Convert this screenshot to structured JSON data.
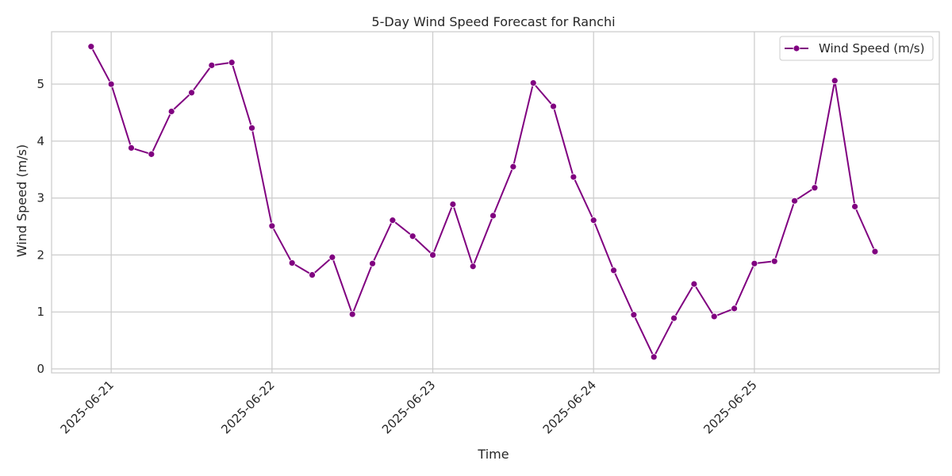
{
  "chart_data": {
    "type": "line",
    "title": "5-Day Wind Speed Forecast for Ranchi",
    "xlabel": "Time",
    "ylabel": "Wind Speed (m/s)",
    "x_ticks": [
      "2025-06-21",
      "2025-06-22",
      "2025-06-23",
      "2025-06-24",
      "2025-06-25"
    ],
    "y_ticks": [
      "0",
      "1",
      "2",
      "3",
      "4",
      "5"
    ],
    "ylim": [
      -0.07,
      5.92
    ],
    "xlim": [
      "2025-06-20T15:06:00",
      "2025-06-26T03:36:00"
    ],
    "grid": true,
    "legend_position": "top-right",
    "series": [
      {
        "name": "Wind Speed (m/s)",
        "color": "#800080",
        "marker": "circle",
        "x": [
          "2025-06-20T21:00",
          "2025-06-21T00:00",
          "2025-06-21T03:00",
          "2025-06-21T06:00",
          "2025-06-21T09:00",
          "2025-06-21T12:00",
          "2025-06-21T15:00",
          "2025-06-21T18:00",
          "2025-06-21T21:00",
          "2025-06-22T00:00",
          "2025-06-22T03:00",
          "2025-06-22T06:00",
          "2025-06-22T09:00",
          "2025-06-22T12:00",
          "2025-06-22T15:00",
          "2025-06-22T18:00",
          "2025-06-22T21:00",
          "2025-06-23T00:00",
          "2025-06-23T03:00",
          "2025-06-23T06:00",
          "2025-06-23T09:00",
          "2025-06-23T12:00",
          "2025-06-23T15:00",
          "2025-06-23T18:00",
          "2025-06-23T21:00",
          "2025-06-24T00:00",
          "2025-06-24T03:00",
          "2025-06-24T06:00",
          "2025-06-24T09:00",
          "2025-06-24T12:00",
          "2025-06-24T15:00",
          "2025-06-24T18:00",
          "2025-06-24T21:00",
          "2025-06-25T00:00",
          "2025-06-25T03:00",
          "2025-06-25T06:00",
          "2025-06-25T09:00",
          "2025-06-25T12:00",
          "2025-06-25T15:00",
          "2025-06-25T18:00"
        ],
        "values": [
          5.66,
          5.0,
          3.88,
          3.77,
          4.52,
          4.85,
          5.33,
          5.38,
          4.23,
          2.51,
          1.86,
          1.65,
          1.96,
          0.96,
          1.85,
          2.61,
          2.33,
          2.0,
          2.89,
          1.8,
          2.69,
          3.55,
          5.02,
          4.61,
          3.37,
          2.61,
          1.73,
          0.95,
          0.21,
          0.89,
          1.49,
          0.92,
          1.06,
          1.85,
          1.89,
          2.95,
          3.18,
          5.06,
          2.85,
          2.06
        ]
      }
    ]
  }
}
